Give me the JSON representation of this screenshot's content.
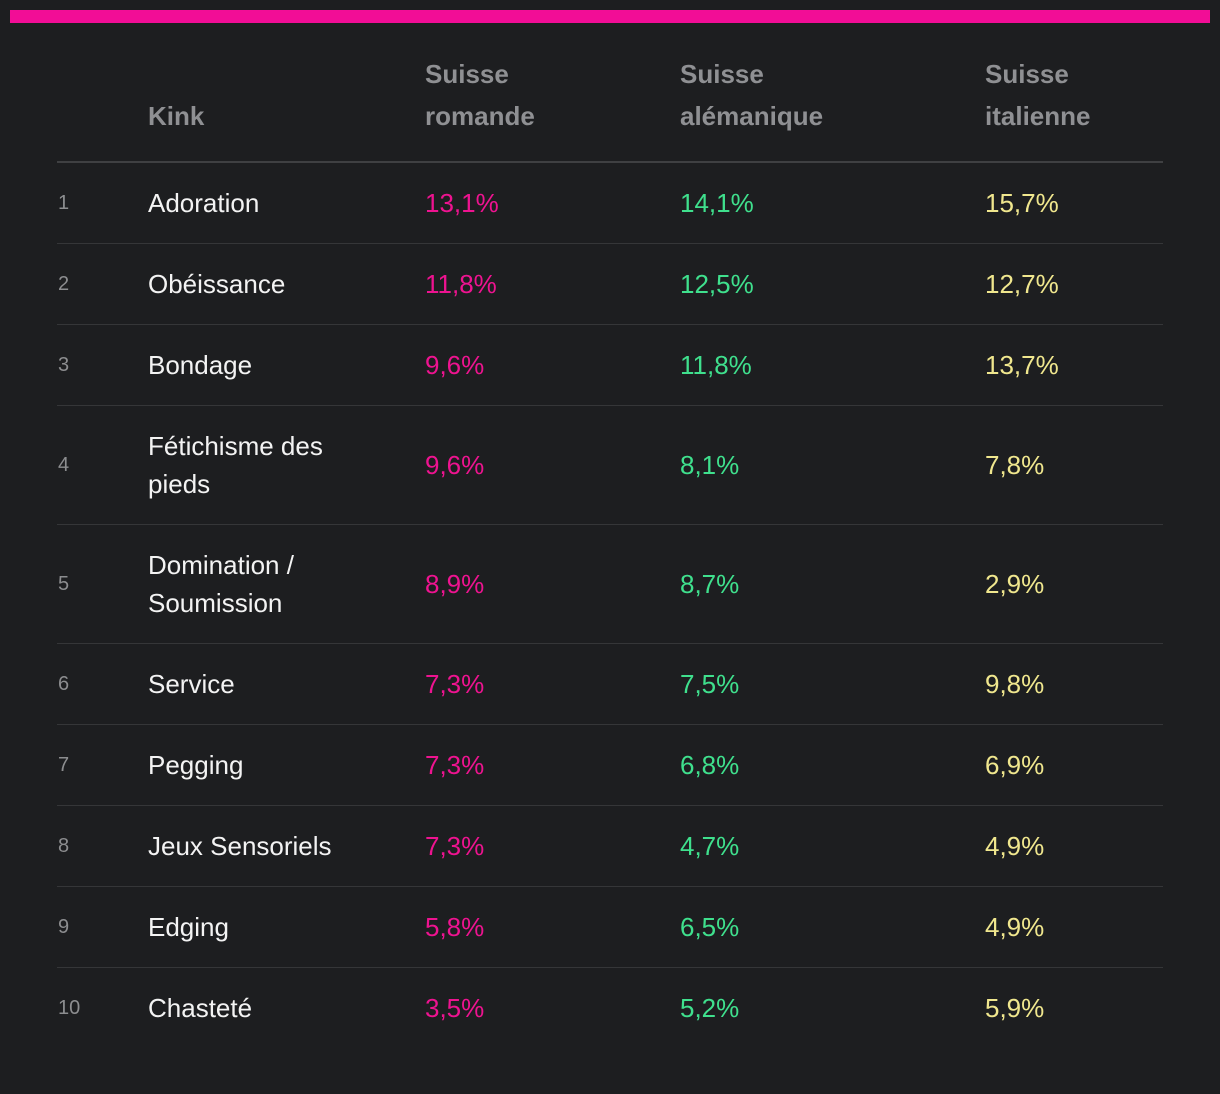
{
  "accent_bar_color": "#f20d96",
  "colors": {
    "background": "#1d1e20",
    "header_text": "#8f9093",
    "row_number_text": "#8c8d8f",
    "kink_text": "#f3f3f3",
    "suisse_romande_value": "#ee1390",
    "suisse_alemanique_value": "#3fe08d",
    "suisse_italienne_value": "#f0e78e",
    "separator": "#353638"
  },
  "table": {
    "columns": [
      {
        "key": "kink",
        "label": "Kink"
      },
      {
        "key": "suisse_romande",
        "label": "Suisse romande"
      },
      {
        "key": "suisse_alemanique",
        "label": "Suisse alémanique"
      },
      {
        "key": "suisse_italienne",
        "label": "Suisse italienne"
      }
    ],
    "rows": [
      {
        "rank": "1",
        "kink": "Adoration",
        "suisse_romande": "13,1%",
        "suisse_alemanique": "14,1%",
        "suisse_italienne": "15,7%"
      },
      {
        "rank": "2",
        "kink": "Obéissance",
        "suisse_romande": "11,8%",
        "suisse_alemanique": "12,5%",
        "suisse_italienne": "12,7%"
      },
      {
        "rank": "3",
        "kink": "Bondage",
        "suisse_romande": "9,6%",
        "suisse_alemanique": "11,8%",
        "suisse_italienne": "13,7%"
      },
      {
        "rank": "4",
        "kink": "Fétichisme des pieds",
        "suisse_romande": "9,6%",
        "suisse_alemanique": "8,1%",
        "suisse_italienne": "7,8%"
      },
      {
        "rank": "5",
        "kink": "Domination / Soumission",
        "suisse_romande": "8,9%",
        "suisse_alemanique": "8,7%",
        "suisse_italienne": "2,9%"
      },
      {
        "rank": "6",
        "kink": "Service",
        "suisse_romande": "7,3%",
        "suisse_alemanique": "7,5%",
        "suisse_italienne": "9,8%"
      },
      {
        "rank": "7",
        "kink": "Pegging",
        "suisse_romande": "7,3%",
        "suisse_alemanique": "6,8%",
        "suisse_italienne": "6,9%"
      },
      {
        "rank": "8",
        "kink": "Jeux Sensoriels",
        "suisse_romande": "7,3%",
        "suisse_alemanique": "4,7%",
        "suisse_italienne": "4,9%"
      },
      {
        "rank": "9",
        "kink": "Edging",
        "suisse_romande": "5,8%",
        "suisse_alemanique": "6,5%",
        "suisse_italienne": "4,9%"
      },
      {
        "rank": "10",
        "kink": "Chasteté",
        "suisse_romande": "3,5%",
        "suisse_alemanique": "5,2%",
        "suisse_italienne": "5,9%"
      }
    ]
  },
  "chart_data": {
    "type": "table",
    "title": "",
    "categories": [
      "Adoration",
      "Obéissance",
      "Bondage",
      "Fétichisme des pieds",
      "Domination / Soumission",
      "Service",
      "Pegging",
      "Jeux Sensoriels",
      "Edging",
      "Chasteté"
    ],
    "ranks": [
      1,
      2,
      3,
      4,
      5,
      6,
      7,
      8,
      9,
      10
    ],
    "series": [
      {
        "name": "Suisse romande",
        "values": [
          13.1,
          11.8,
          9.6,
          9.6,
          8.9,
          7.3,
          7.3,
          7.3,
          5.8,
          3.5
        ]
      },
      {
        "name": "Suisse alémanique",
        "values": [
          14.1,
          12.5,
          11.8,
          8.1,
          8.7,
          7.5,
          6.8,
          4.7,
          6.5,
          5.2
        ]
      },
      {
        "name": "Suisse italienne",
        "values": [
          15.7,
          12.7,
          13.7,
          7.8,
          2.9,
          9.8,
          6.9,
          4.9,
          4.9,
          5.9
        ]
      }
    ],
    "value_unit": "%",
    "layout": "ranked table, one row per kink, three region columns with color-coded percentage values"
  }
}
